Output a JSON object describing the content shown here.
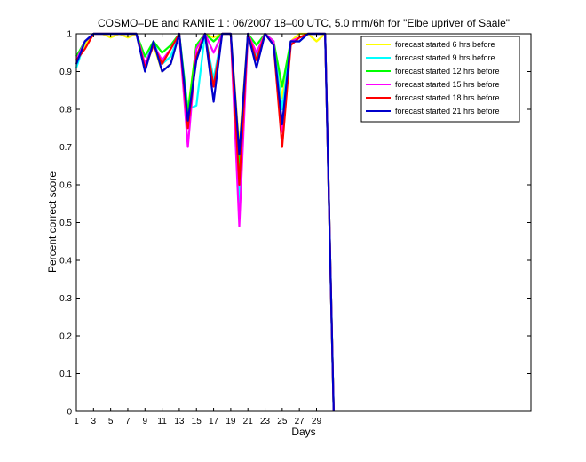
{
  "chart_data": {
    "type": "line",
    "title": "COSMO–DE and RANIE 1 : 06/2007 18–00 UTC, 5.0 mm/6h for \"Elbe upriver of Saale\"",
    "xlabel": "Days",
    "ylabel": "Percent correct score",
    "xlim": [
      1,
      54
    ],
    "ylim": [
      0,
      1
    ],
    "xticks": [
      1,
      3,
      5,
      7,
      9,
      11,
      13,
      15,
      17,
      19,
      21,
      23,
      25,
      27,
      29
    ],
    "yticks": [
      0,
      0.1,
      0.2,
      0.3,
      0.4,
      0.5,
      0.6,
      0.7,
      0.8,
      0.9,
      1
    ],
    "ytick_labels": [
      "0",
      "0.1",
      "0.2",
      "0.3",
      "0.4",
      "0.5",
      "0.6",
      "0.7",
      "0.8",
      "0.9",
      "1"
    ],
    "grid": false,
    "legend_position": "top-right",
    "x": [
      1,
      2,
      3,
      4,
      5,
      6,
      7,
      8,
      9,
      10,
      11,
      12,
      13,
      14,
      15,
      16,
      17,
      18,
      19,
      20,
      21,
      22,
      23,
      24,
      25,
      26,
      27,
      28,
      29,
      30,
      31
    ],
    "series": [
      {
        "name": "forecast started 6 hrs before",
        "color": "#ffff00",
        "values": [
          0.93,
          0.97,
          1.0,
          1.0,
          0.99,
          1.0,
          0.99,
          1.0,
          0.92,
          0.97,
          0.9,
          0.92,
          1.0,
          0.8,
          0.97,
          1.0,
          0.99,
          1.0,
          1.0,
          0.7,
          1.0,
          0.95,
          1.0,
          0.98,
          0.83,
          0.98,
          1.0,
          1.0,
          0.98,
          1.0,
          0
        ]
      },
      {
        "name": "forecast started 9 hrs before",
        "color": "#00ffff",
        "values": [
          0.91,
          0.98,
          1.0,
          1.0,
          1.0,
          1.0,
          1.0,
          1.0,
          0.92,
          0.98,
          0.92,
          0.94,
          1.0,
          0.8,
          0.81,
          1.0,
          0.88,
          1.0,
          1.0,
          0.55,
          1.0,
          0.94,
          1.0,
          0.98,
          0.8,
          0.98,
          0.98,
          1.0,
          1.0,
          1.0,
          0
        ]
      },
      {
        "name": "forecast started 12 hrs before",
        "color": "#00ff00",
        "values": [
          0.94,
          0.98,
          1.0,
          1.0,
          1.0,
          1.0,
          1.0,
          1.0,
          0.94,
          0.98,
          0.95,
          0.97,
          1.0,
          0.79,
          0.97,
          1.0,
          0.98,
          1.0,
          1.0,
          0.64,
          1.0,
          0.97,
          1.0,
          0.98,
          0.86,
          0.98,
          0.99,
          1.0,
          1.0,
          1.0,
          0
        ]
      },
      {
        "name": "forecast started 15 hrs before",
        "color": "#ff00ff",
        "values": [
          0.93,
          0.98,
          1.0,
          1.0,
          1.0,
          1.0,
          1.0,
          1.0,
          0.92,
          0.97,
          0.93,
          0.96,
          1.0,
          0.7,
          0.96,
          1.0,
          0.95,
          1.0,
          1.0,
          0.49,
          1.0,
          0.95,
          1.0,
          0.98,
          0.74,
          0.98,
          0.99,
          1.0,
          1.0,
          1.0,
          0
        ]
      },
      {
        "name": "forecast started 18 hrs before",
        "color": "#ff0000",
        "values": [
          0.93,
          0.96,
          1.0,
          1.0,
          1.0,
          1.0,
          1.0,
          1.0,
          0.91,
          0.97,
          0.92,
          0.96,
          1.0,
          0.75,
          0.94,
          1.0,
          0.86,
          1.0,
          1.0,
          0.6,
          1.0,
          0.93,
          1.0,
          0.97,
          0.7,
          0.97,
          0.99,
          1.0,
          1.0,
          1.0,
          0
        ]
      },
      {
        "name": "forecast started 21 hrs before",
        "color": "#0000cc",
        "values": [
          0.92,
          0.98,
          1.0,
          1.0,
          1.0,
          1.0,
          1.0,
          1.0,
          0.9,
          0.98,
          0.9,
          0.92,
          1.0,
          0.77,
          0.93,
          1.0,
          0.82,
          1.0,
          1.0,
          0.68,
          1.0,
          0.91,
          1.0,
          0.97,
          0.76,
          0.98,
          0.98,
          1.0,
          1.0,
          1.0,
          0
        ]
      }
    ]
  }
}
